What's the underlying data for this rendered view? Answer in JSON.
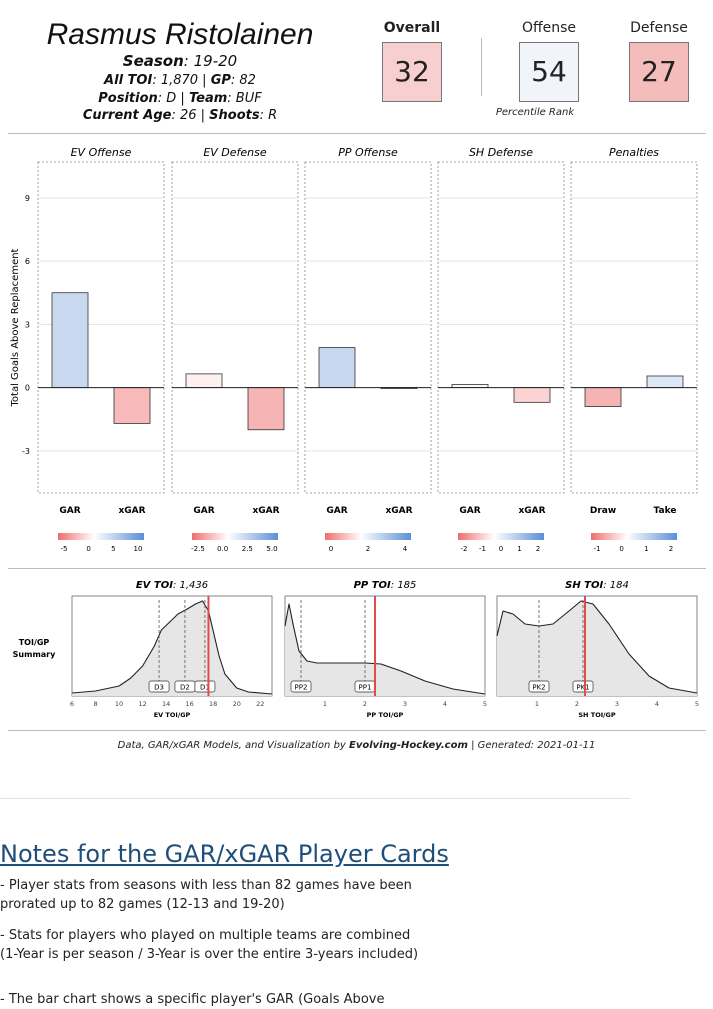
{
  "player": {
    "name": "Rasmus Ristolainen",
    "season_label": "Season",
    "season": ": 19-20",
    "toi_label": "All TOI",
    "toi": ": 1,870 | ",
    "gp_label": "GP",
    "gp": ": 82",
    "position_label": "Position",
    "position": ": D | ",
    "team_label": "Team",
    "team": ": BUF",
    "age_label": "Current Age",
    "age": ": 26 | ",
    "shoots_label": "Shoots",
    "shoots": ": R"
  },
  "ranks": {
    "overall_label": "Overall",
    "overall": "32",
    "offense_label": "Offense",
    "offense": "54",
    "defense_label": "Defense",
    "defense": "27",
    "caption": "Percentile Rank"
  },
  "chart_data": [
    {
      "type": "bar",
      "ylabel": "Total Goals Above Replacement",
      "ylim": [
        -5.0,
        10.7
      ],
      "yticks": [
        "9",
        "6",
        "3",
        "0",
        "-3"
      ],
      "panels": [
        {
          "title": "EV Offense",
          "categories": [
            "GAR",
            "xGAR"
          ],
          "values": [
            4.5,
            -1.7
          ],
          "colors": [
            "#c9d9f0",
            "#f7b9b9"
          ],
          "legend_ticks": [
            "-5",
            "0",
            "5",
            "10"
          ]
        },
        {
          "title": "EV Defense",
          "categories": [
            "GAR",
            "xGAR"
          ],
          "values": [
            0.65,
            -2.0
          ],
          "colors": [
            "#fdf0ee",
            "#f7b4b4"
          ],
          "legend_ticks": [
            "-2.5",
            "0.0",
            "2.5",
            "5.0"
          ]
        },
        {
          "title": "PP Offense",
          "categories": [
            "GAR",
            "xGAR"
          ],
          "values": [
            1.9,
            -0.03
          ],
          "colors": [
            "#c7d7f0",
            "#f3f3f3"
          ],
          "legend_ticks": [
            "0",
            "2",
            "4"
          ]
        },
        {
          "title": "SH Defense",
          "categories": [
            "GAR",
            "xGAR"
          ],
          "values": [
            0.15,
            -0.7
          ],
          "colors": [
            "#f8f8f8",
            "#fbd3d3"
          ],
          "legend_ticks": [
            "-2",
            "-1",
            "0",
            "1",
            "2"
          ]
        },
        {
          "title": "Penalties",
          "categories": [
            "Draw",
            "Take"
          ],
          "values": [
            -0.9,
            0.55
          ],
          "colors": [
            "#f6b3b3",
            "#dde7f6"
          ],
          "legend_ticks": [
            "-1",
            "0",
            "1",
            "2"
          ]
        }
      ]
    },
    {
      "type": "area",
      "summary_label": "TOI/GP Summary",
      "panels": [
        {
          "title": "EV TOI",
          "title_value": ": 1,436",
          "xlabel": "EV TOI/GP",
          "xlim": [
            6,
            23
          ],
          "xticks": [
            6,
            8,
            10,
            12,
            14,
            16,
            18,
            20,
            22
          ],
          "curve": [
            [
              6,
              0.03
            ],
            [
              8,
              0.05
            ],
            [
              10,
              0.1
            ],
            [
              11,
              0.18
            ],
            [
              12,
              0.3
            ],
            [
              13,
              0.5
            ],
            [
              13.6,
              0.66
            ],
            [
              14.4,
              0.75
            ],
            [
              15,
              0.82
            ],
            [
              15.8,
              0.87
            ],
            [
              16.5,
              0.92
            ],
            [
              17.1,
              0.95
            ],
            [
              17.6,
              0.85
            ],
            [
              18,
              0.65
            ],
            [
              18.5,
              0.4
            ],
            [
              19,
              0.22
            ],
            [
              20,
              0.08
            ],
            [
              21,
              0.04
            ],
            [
              23,
              0.02
            ]
          ],
          "markers": [
            {
              "label": "D3",
              "x": 13.4
            },
            {
              "label": "D2",
              "x": 15.6
            },
            {
              "label": "D1",
              "x": 17.3
            }
          ],
          "player_x": 17.6
        },
        {
          "title": "PP TOI",
          "title_value": ": 185",
          "xlabel": "PP TOI/GP",
          "xlim": [
            0,
            5
          ],
          "xticks": [
            1,
            2,
            3,
            4,
            5
          ],
          "curve": [
            [
              0,
              0.7
            ],
            [
              0.1,
              0.92
            ],
            [
              0.2,
              0.72
            ],
            [
              0.35,
              0.45
            ],
            [
              0.55,
              0.35
            ],
            [
              0.8,
              0.33
            ],
            [
              1.2,
              0.33
            ],
            [
              1.6,
              0.33
            ],
            [
              2.0,
              0.33
            ],
            [
              2.4,
              0.32
            ],
            [
              2.9,
              0.25
            ],
            [
              3.5,
              0.15
            ],
            [
              4.2,
              0.07
            ],
            [
              5,
              0.02
            ]
          ],
          "markers": [
            {
              "label": "PP2",
              "x": 0.4
            },
            {
              "label": "PP1",
              "x": 2.0
            }
          ],
          "player_x": 2.25
        },
        {
          "title": "SH TOI",
          "title_value": ": 184",
          "xlabel": "SH TOI/GP",
          "xlim": [
            0,
            5
          ],
          "xticks": [
            1,
            2,
            3,
            4,
            5
          ],
          "curve": [
            [
              0,
              0.6
            ],
            [
              0.15,
              0.85
            ],
            [
              0.4,
              0.82
            ],
            [
              0.7,
              0.72
            ],
            [
              1.05,
              0.7
            ],
            [
              1.4,
              0.72
            ],
            [
              1.8,
              0.85
            ],
            [
              2.1,
              0.95
            ],
            [
              2.4,
              0.92
            ],
            [
              2.8,
              0.72
            ],
            [
              3.3,
              0.42
            ],
            [
              3.8,
              0.2
            ],
            [
              4.3,
              0.08
            ],
            [
              5,
              0.03
            ]
          ],
          "markers": [
            {
              "label": "PK2",
              "x": 1.05
            },
            {
              "label": "PK1",
              "x": 2.15
            }
          ],
          "player_x": 2.2
        }
      ]
    }
  ],
  "footer": {
    "pre": "Data, GAR/xGAR Models, and Visualization by ",
    "brand": "Evolving-Hockey.com",
    "post": " | Generated: 2021-01-11"
  },
  "notes": {
    "title": "Notes for the GAR/xGAR Player Cards",
    "items": [
      "- Player stats from seasons with less than 82 games have been prorated up to 82 games (12-13 and 19-20)",
      "- Stats for players who played on multiple teams are combined (1-Year is per season / 3-Year is over the entire 3-years included)",
      "- The bar chart shows a specific player's GAR (Goals Above"
    ]
  },
  "colors": {
    "overall_box": "#f7cfcf",
    "offense_box": "#f1f5fb",
    "defense_box": "#f5bcbc",
    "player_line": "#e24b4b",
    "notes_title": "#1f4e79"
  }
}
